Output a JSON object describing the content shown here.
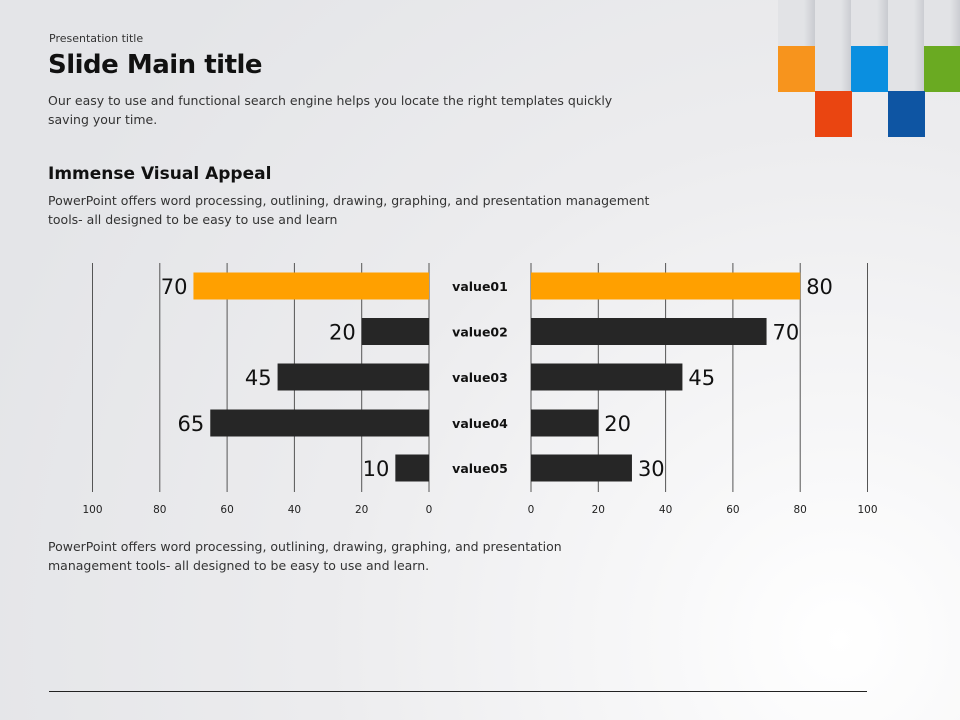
{
  "header": {
    "pretitle": "Presentation title",
    "title": "Slide Main title",
    "subtitle": "Our easy to use and functional search engine helps you locate the right templates quickly saving your time."
  },
  "section": {
    "heading": "Immense Visual Appeal",
    "description": "PowerPoint offers word processing, outlining, drawing, graphing, and presentation management tools- all designed to be easy to use and learn"
  },
  "footer_text": "PowerPoint offers word processing, outlining, drawing, graphing, and presentation management tools- all designed to be easy to use and learn.",
  "decoration_colors": {
    "orange": "#f7941d",
    "blue": "#0a8fe0",
    "green": "#6aaa22",
    "red": "#ea4511",
    "dark_blue": "#0e55a3",
    "light": "#e2e3e6"
  },
  "chart_data": {
    "type": "bar",
    "orientation": "horizontal-butterfly",
    "categories": [
      "value01",
      "value02",
      "value03",
      "value04",
      "value05"
    ],
    "series": [
      {
        "side": "left",
        "values": [
          70,
          20,
          45,
          65,
          10
        ]
      },
      {
        "side": "right",
        "values": [
          80,
          70,
          45,
          20,
          30
        ]
      }
    ],
    "xlim": [
      0,
      100
    ],
    "ticks": [
      0,
      20,
      40,
      60,
      80,
      100
    ],
    "grid": true,
    "highlight_color": "#ffa000",
    "bar_color": "#262626"
  }
}
